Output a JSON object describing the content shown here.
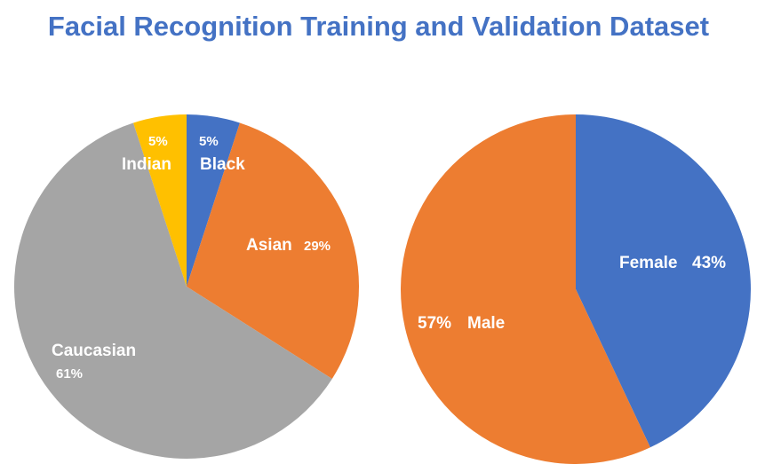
{
  "title": "Facial Recognition Training and Validation Dataset",
  "chart_data": [
    {
      "type": "pie",
      "slices": [
        {
          "label": "Black",
          "value": 5,
          "value_text": "5%",
          "color": "#4472c4"
        },
        {
          "label": "Asian",
          "value": 29,
          "value_text": "29%",
          "color": "#ed7d31"
        },
        {
          "label": "Caucasian",
          "value": 61,
          "value_text": "61%",
          "color": "#a5a5a5"
        },
        {
          "label": "Indian",
          "value": 5,
          "value_text": "5%",
          "color": "#ffc000"
        }
      ]
    },
    {
      "type": "pie",
      "slices": [
        {
          "label": "Female",
          "value": 43,
          "value_text": "43%",
          "color": "#4472c4"
        },
        {
          "label": "Male",
          "value": 57,
          "value_text": "57%",
          "color": "#ed7d31"
        }
      ]
    }
  ]
}
